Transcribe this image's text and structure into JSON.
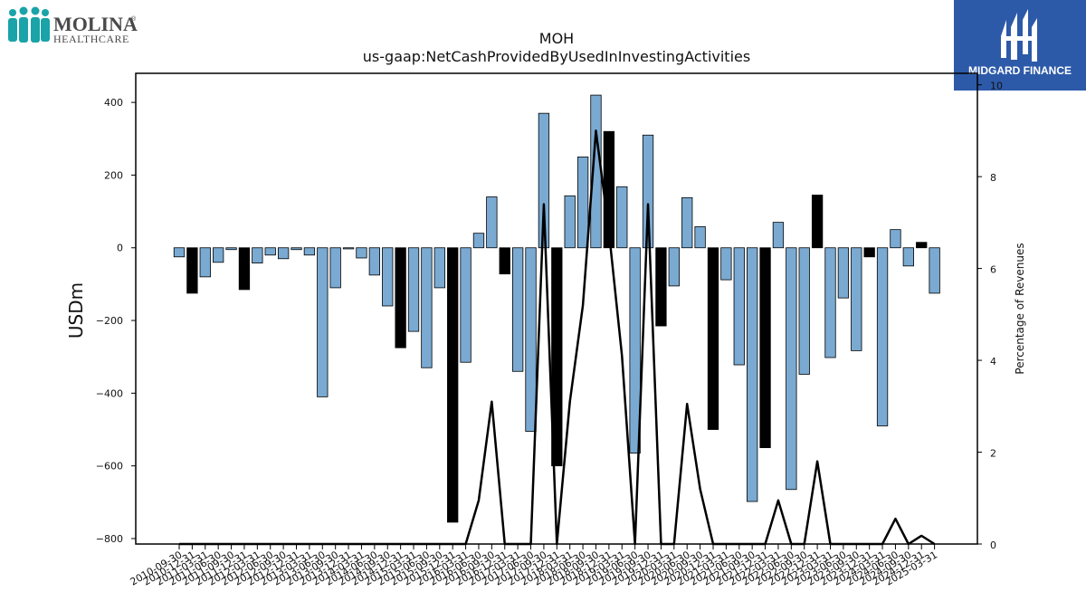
{
  "logos": {
    "left": {
      "line1": "MOLINA",
      "line2": "HEALTHCARE",
      "reg": "®"
    },
    "right": {
      "text": "MIDGARD FINANCE"
    }
  },
  "chart_data": {
    "type": "bar",
    "title": "MOH",
    "subtitle": "us-gaap:NetCashProvidedByUsedInInvestingActivities",
    "ylabel": "USDm",
    "y2label": "Percentage of Revenues",
    "ylim": [
      -815,
      480
    ],
    "y2lim": [
      0,
      10.25
    ],
    "yticks": [
      -800,
      -600,
      -400,
      -200,
      0,
      200,
      400
    ],
    "y2ticks": [
      0,
      2,
      4,
      6,
      8,
      10
    ],
    "legend": "none",
    "grid": false,
    "colors": {
      "quarterly": "#7aaad2",
      "annual": "#000000",
      "line": "#000000",
      "edge": "#000000"
    },
    "categories": [
      "2010-09-30",
      "2010-12-31",
      "2011-03-31",
      "2011-06-30",
      "2011-09-30",
      "2011-12-31",
      "2012-03-31",
      "2012-06-30",
      "2012-09-30",
      "2012-12-31",
      "2013-03-31",
      "2013-06-30",
      "2013-09-30",
      "2013-12-31",
      "2014-03-31",
      "2014-06-30",
      "2014-09-30",
      "2014-12-31",
      "2015-03-31",
      "2015-06-30",
      "2015-09-30",
      "2015-12-31",
      "2016-03-31",
      "2016-06-30",
      "2016-09-30",
      "2016-12-31",
      "2017-03-31",
      "2017-06-30",
      "2017-09-30",
      "2017-12-31",
      "2018-03-31",
      "2018-06-30",
      "2018-09-30",
      "2018-12-31",
      "2019-03-31",
      "2019-06-30",
      "2019-09-30",
      "2019-12-31",
      "2020-03-31",
      "2020-06-30",
      "2020-09-30",
      "2020-12-31",
      "2021-03-31",
      "2021-06-30",
      "2021-09-30",
      "2021-12-31",
      "2022-03-31",
      "2022-06-30",
      "2022-09-30",
      "2022-12-31",
      "2023-03-31",
      "2023-06-30",
      "2023-09-30",
      "2023-12-31",
      "2024-03-31",
      "2024-06-30",
      "2024-09-30",
      "2024-12-31",
      "2025-03-31"
    ],
    "series": [
      {
        "values": [
          -25,
          -125,
          -80,
          -40,
          -5,
          -115,
          -42,
          -20,
          -30,
          -5,
          -20,
          -410,
          -110,
          -3,
          -28,
          -75,
          -160,
          -275,
          -230,
          -330,
          -110,
          -755,
          -315,
          40,
          140,
          -72,
          -340,
          -505,
          370,
          -600,
          143,
          250,
          420,
          320,
          168,
          -565,
          310,
          -215,
          -105,
          138,
          58,
          -500,
          -88,
          -322,
          -698,
          -550,
          70,
          -665,
          -348,
          145,
          -302,
          -138,
          -283,
          -25,
          -490,
          50,
          -50,
          15,
          -125
        ]
      }
    ],
    "annual_flags": [
      false,
      true,
      false,
      false,
      false,
      true,
      false,
      false,
      false,
      false,
      false,
      false,
      false,
      false,
      false,
      false,
      false,
      true,
      false,
      false,
      false,
      true,
      false,
      false,
      false,
      true,
      false,
      false,
      false,
      true,
      false,
      false,
      false,
      true,
      false,
      false,
      false,
      true,
      false,
      false,
      false,
      true,
      false,
      false,
      false,
      true,
      false,
      false,
      false,
      true,
      false,
      false,
      false,
      true,
      false,
      false,
      false,
      true,
      false
    ],
    "percentage_line": [
      0,
      0,
      0,
      0,
      0,
      0,
      0,
      0,
      0,
      0,
      0,
      0,
      0,
      0,
      0,
      0,
      0,
      0,
      0,
      0,
      0,
      0,
      0,
      0.95,
      3.1,
      0,
      0,
      0,
      7.4,
      0,
      3.1,
      5.2,
      9.0,
      6.8,
      4.1,
      0,
      7.4,
      0,
      0,
      3.05,
      1.2,
      0,
      0,
      0,
      0,
      0,
      0.95,
      0,
      0,
      1.8,
      0,
      0,
      0,
      0,
      0,
      0.55,
      0,
      0.18,
      0
    ],
    "x_tick_labels": [
      "2010-09-30",
      "2010-12-31",
      "2011-03-31",
      "2011-06-30",
      "2011-09-30",
      "2011-12-31",
      "2012-03-31",
      "2012-06-30",
      "2012-09-30",
      "2012-12-31",
      "2013-03-31",
      "2013-06-30",
      "2013-09-30",
      "2013-12-31",
      "2014-03-31",
      "2014-06-30",
      "2014-09-30",
      "2014-12-31",
      "2015-03-31",
      "2015-06-30",
      "2015-09-30",
      "2015-12-31",
      "2016-03-31",
      "2016-06-30",
      "2016-09-30",
      "2016-12-31",
      "2017-03-31",
      "2017-06-30",
      "2017-09-30",
      "2017-12-31",
      "2018-03-31",
      "2018-06-30",
      "2018-09-30",
      "2018-12-31",
      "2019-03-31",
      "2019-06-30",
      "2019-09-30",
      "2019-12-31",
      "2020-03-31",
      "2020-06-30",
      "2020-09-30",
      "2020-12-31",
      "2021-03-31",
      "2021-06-30",
      "2021-09-30",
      "2021-12-31",
      "2022-03-31",
      "2022-06-30",
      "2022-09-30",
      "2022-12-31",
      "2023-03-31",
      "2023-06-30",
      "2023-09-30",
      "2023-12-31",
      "2024-03-31",
      "2024-06-30",
      "2024-09-30",
      "2024-12-31",
      "2025-03-31"
    ]
  }
}
